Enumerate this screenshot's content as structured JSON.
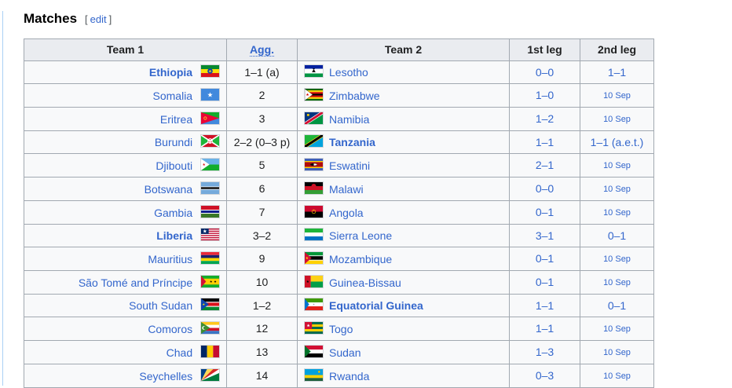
{
  "page": {
    "heading": "Matches",
    "edit": {
      "bracket_open": "[",
      "label": "edit",
      "bracket_close": "]"
    }
  },
  "colors": {
    "link": "#3366cc",
    "text": "#202122",
    "table_border": "#a2a9b1",
    "header_bg": "#eaecf0",
    "cell_bg": "#f8f9fa",
    "content_border": "#a9d0f5"
  },
  "table": {
    "headers": {
      "team1": "Team 1",
      "agg": "Agg.",
      "team2": "Team 2",
      "leg1": "1st leg",
      "leg2": "2nd leg"
    },
    "rows": [
      {
        "team1": "Ethiopia",
        "team1_flag": "ethiopia",
        "team1_bold": true,
        "agg": "1–1 (a)",
        "team2": "Lesotho",
        "team2_flag": "lesotho",
        "team2_bold": false,
        "leg1": "0–0",
        "leg2": "1–1",
        "leg2_is_date": false
      },
      {
        "team1": "Somalia",
        "team1_flag": "somalia",
        "team1_bold": false,
        "agg": "2",
        "team2": "Zimbabwe",
        "team2_flag": "zimbabwe",
        "team2_bold": false,
        "leg1": "1–0",
        "leg2": "10 Sep",
        "leg2_is_date": true
      },
      {
        "team1": "Eritrea",
        "team1_flag": "eritrea",
        "team1_bold": false,
        "agg": "3",
        "team2": "Namibia",
        "team2_flag": "namibia",
        "team2_bold": false,
        "leg1": "1–2",
        "leg2": "10 Sep",
        "leg2_is_date": true
      },
      {
        "team1": "Burundi",
        "team1_flag": "burundi",
        "team1_bold": false,
        "agg": "2–2 (0–3 p)",
        "team2": "Tanzania",
        "team2_flag": "tanzania",
        "team2_bold": true,
        "leg1": "1–1",
        "leg2": "1–1 (a.e.t.)",
        "leg2_is_date": false
      },
      {
        "team1": "Djibouti",
        "team1_flag": "djibouti",
        "team1_bold": false,
        "agg": "5",
        "team2": "Eswatini",
        "team2_flag": "eswatini",
        "team2_bold": false,
        "leg1": "2–1",
        "leg2": "10 Sep",
        "leg2_is_date": true
      },
      {
        "team1": "Botswana",
        "team1_flag": "botswana",
        "team1_bold": false,
        "agg": "6",
        "team2": "Malawi",
        "team2_flag": "malawi",
        "team2_bold": false,
        "leg1": "0–0",
        "leg2": "10 Sep",
        "leg2_is_date": true
      },
      {
        "team1": "Gambia",
        "team1_flag": "gambia",
        "team1_bold": false,
        "agg": "7",
        "team2": "Angola",
        "team2_flag": "angola",
        "team2_bold": false,
        "leg1": "0–1",
        "leg2": "10 Sep",
        "leg2_is_date": true
      },
      {
        "team1": "Liberia",
        "team1_flag": "liberia",
        "team1_bold": true,
        "agg": "3–2",
        "team2": "Sierra Leone",
        "team2_flag": "sierra-leone",
        "team2_bold": false,
        "leg1": "3–1",
        "leg2": "0–1",
        "leg2_is_date": false
      },
      {
        "team1": "Mauritius",
        "team1_flag": "mauritius",
        "team1_bold": false,
        "agg": "9",
        "team2": "Mozambique",
        "team2_flag": "mozambique",
        "team2_bold": false,
        "leg1": "0–1",
        "leg2": "10 Sep",
        "leg2_is_date": true
      },
      {
        "team1": "São Tomé and Príncipe",
        "team1_flag": "sao-tome",
        "team1_bold": false,
        "agg": "10",
        "team2": "Guinea-Bissau",
        "team2_flag": "guinea-bissau",
        "team2_bold": false,
        "leg1": "0–1",
        "leg2": "10 Sep",
        "leg2_is_date": true
      },
      {
        "team1": "South Sudan",
        "team1_flag": "south-sudan",
        "team1_bold": false,
        "agg": "1–2",
        "team2": "Equatorial Guinea",
        "team2_flag": "equatorial-guinea",
        "team2_bold": true,
        "leg1": "1–1",
        "leg2": "0–1",
        "leg2_is_date": false
      },
      {
        "team1": "Comoros",
        "team1_flag": "comoros",
        "team1_bold": false,
        "agg": "12",
        "team2": "Togo",
        "team2_flag": "togo",
        "team2_bold": false,
        "leg1": "1–1",
        "leg2": "10 Sep",
        "leg2_is_date": true
      },
      {
        "team1": "Chad",
        "team1_flag": "chad",
        "team1_bold": false,
        "agg": "13",
        "team2": "Sudan",
        "team2_flag": "sudan",
        "team2_bold": false,
        "leg1": "1–3",
        "leg2": "10 Sep",
        "leg2_is_date": true
      },
      {
        "team1": "Seychelles",
        "team1_flag": "seychelles",
        "team1_bold": false,
        "agg": "14",
        "team2": "Rwanda",
        "team2_flag": "rwanda",
        "team2_bold": false,
        "leg1": "0–3",
        "leg2": "10 Sep",
        "leg2_is_date": true
      }
    ]
  }
}
